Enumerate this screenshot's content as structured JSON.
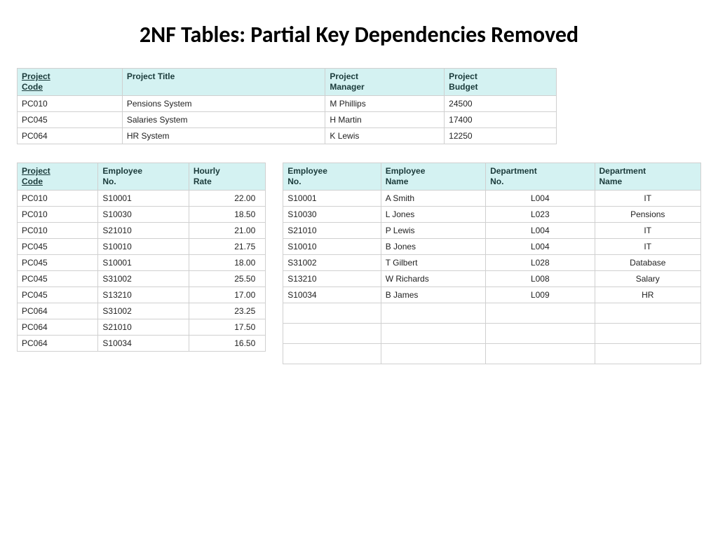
{
  "title": "2NF Tables: Partial Key Dependencies Removed",
  "colors": {
    "header_bg": "#d4f2f2",
    "border": "#d0d0d0",
    "text": "#222222",
    "header_text": "#1a3a3a",
    "page_bg": "#ffffff"
  },
  "projects_table": {
    "type": "table",
    "columns": [
      {
        "label_line1": "Project",
        "label_line2": "Code",
        "underlined": true
      },
      {
        "label_line1": "Project Title"
      },
      {
        "label_line1": "Project",
        "label_line2": "Manager"
      },
      {
        "label_line1": "Project",
        "label_line2": "Budget"
      }
    ],
    "rows": [
      [
        "PC010",
        "Pensions System",
        "M Phillips",
        "24500"
      ],
      [
        "PC045",
        "Salaries System",
        "H Martin",
        "17400"
      ],
      [
        "PC064",
        "HR System",
        "K Lewis",
        "12250"
      ]
    ]
  },
  "assignment_table": {
    "type": "table",
    "columns": [
      {
        "label_line1": "Project",
        "label_line2": "Code",
        "underlined": true
      },
      {
        "label_line1": "Employee",
        "label_line2": "No."
      },
      {
        "label_line1": "Hourly",
        "label_line2": "Rate"
      }
    ],
    "rows": [
      [
        "PC010",
        "S10001",
        "22.00"
      ],
      [
        "PC010",
        "S10030",
        "18.50"
      ],
      [
        "PC010",
        "S21010",
        "21.00"
      ],
      [
        "PC045",
        "S10010",
        "21.75"
      ],
      [
        "PC045",
        "S10001",
        "18.00"
      ],
      [
        "PC045",
        "S31002",
        "25.50"
      ],
      [
        "PC045",
        "S13210",
        "17.00"
      ],
      [
        "PC064",
        "S31002",
        "23.25"
      ],
      [
        "PC064",
        "S21010",
        "17.50"
      ],
      [
        "PC064",
        "S10034",
        "16.50"
      ]
    ]
  },
  "employee_table": {
    "type": "table",
    "columns": [
      {
        "label_line1": "Employee",
        "label_line2": "No."
      },
      {
        "label_line1": "Employee",
        "label_line2": "Name"
      },
      {
        "label_line1": "Department",
        "label_line2": "No."
      },
      {
        "label_line1": "Department",
        "label_line2": "Name"
      }
    ],
    "rows": [
      [
        "S10001",
        "A Smith",
        "L004",
        "IT"
      ],
      [
        "S10030",
        "L Jones",
        "L023",
        "Pensions"
      ],
      [
        "S21010",
        "P Lewis",
        "L004",
        "IT"
      ],
      [
        "S10010",
        "B Jones",
        "L004",
        "IT"
      ],
      [
        "S31002",
        "T Gilbert",
        "L028",
        "Database"
      ],
      [
        "S13210",
        "W Richards",
        "L008",
        "Salary"
      ],
      [
        "S10034",
        "B James",
        "L009",
        "HR"
      ]
    ],
    "blank_rows": 3
  }
}
